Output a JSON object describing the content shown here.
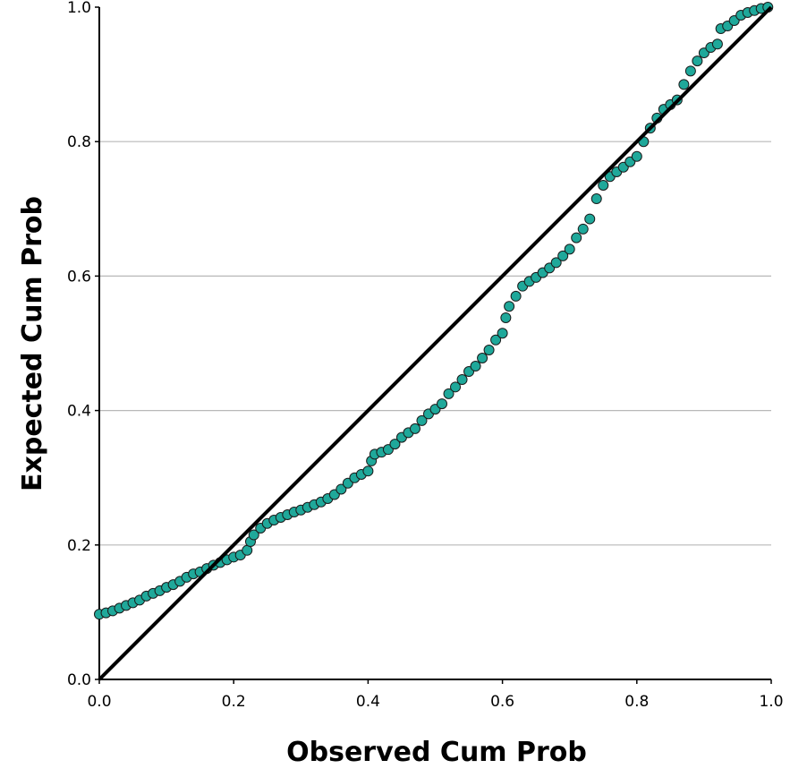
{
  "chart_data": {
    "type": "scatter",
    "title": "",
    "xlabel": "Observed Cum Prob",
    "ylabel": "Expected Cum Prob",
    "xlim": [
      0.0,
      1.0
    ],
    "ylim": [
      0.0,
      1.0
    ],
    "x_ticks": [
      "0.0",
      "0.2",
      "0.4",
      "0.6",
      "0.8",
      "1.0"
    ],
    "y_ticks": [
      "0.0",
      "0.2",
      "0.4",
      "0.6",
      "0.8",
      "1.0"
    ],
    "grid": "horizontal",
    "reference_line": {
      "from": [
        0.0,
        0.0
      ],
      "to": [
        1.0,
        1.0
      ]
    },
    "series": [
      {
        "marker_color": "#1fa89a",
        "points": [
          [
            0.0,
            0.097
          ],
          [
            0.01,
            0.099
          ],
          [
            0.02,
            0.102
          ],
          [
            0.03,
            0.106
          ],
          [
            0.04,
            0.11
          ],
          [
            0.05,
            0.114
          ],
          [
            0.06,
            0.118
          ],
          [
            0.07,
            0.124
          ],
          [
            0.08,
            0.128
          ],
          [
            0.09,
            0.132
          ],
          [
            0.1,
            0.137
          ],
          [
            0.11,
            0.141
          ],
          [
            0.12,
            0.146
          ],
          [
            0.13,
            0.152
          ],
          [
            0.14,
            0.157
          ],
          [
            0.15,
            0.16
          ],
          [
            0.16,
            0.165
          ],
          [
            0.17,
            0.17
          ],
          [
            0.18,
            0.174
          ],
          [
            0.19,
            0.178
          ],
          [
            0.2,
            0.182
          ],
          [
            0.21,
            0.185
          ],
          [
            0.22,
            0.192
          ],
          [
            0.225,
            0.205
          ],
          [
            0.23,
            0.215
          ],
          [
            0.24,
            0.225
          ],
          [
            0.25,
            0.232
          ],
          [
            0.26,
            0.237
          ],
          [
            0.27,
            0.241
          ],
          [
            0.28,
            0.245
          ],
          [
            0.29,
            0.249
          ],
          [
            0.3,
            0.252
          ],
          [
            0.31,
            0.256
          ],
          [
            0.32,
            0.26
          ],
          [
            0.33,
            0.264
          ],
          [
            0.34,
            0.269
          ],
          [
            0.35,
            0.275
          ],
          [
            0.36,
            0.283
          ],
          [
            0.37,
            0.292
          ],
          [
            0.38,
            0.3
          ],
          [
            0.39,
            0.305
          ],
          [
            0.4,
            0.31
          ],
          [
            0.405,
            0.325
          ],
          [
            0.41,
            0.335
          ],
          [
            0.42,
            0.338
          ],
          [
            0.43,
            0.342
          ],
          [
            0.44,
            0.35
          ],
          [
            0.45,
            0.36
          ],
          [
            0.46,
            0.367
          ],
          [
            0.47,
            0.373
          ],
          [
            0.48,
            0.385
          ],
          [
            0.49,
            0.395
          ],
          [
            0.5,
            0.402
          ],
          [
            0.51,
            0.41
          ],
          [
            0.52,
            0.425
          ],
          [
            0.53,
            0.435
          ],
          [
            0.54,
            0.446
          ],
          [
            0.55,
            0.458
          ],
          [
            0.56,
            0.466
          ],
          [
            0.57,
            0.478
          ],
          [
            0.58,
            0.49
          ],
          [
            0.59,
            0.505
          ],
          [
            0.6,
            0.515
          ],
          [
            0.605,
            0.538
          ],
          [
            0.61,
            0.555
          ],
          [
            0.62,
            0.57
          ],
          [
            0.63,
            0.585
          ],
          [
            0.64,
            0.592
          ],
          [
            0.65,
            0.598
          ],
          [
            0.66,
            0.605
          ],
          [
            0.67,
            0.612
          ],
          [
            0.68,
            0.62
          ],
          [
            0.69,
            0.63
          ],
          [
            0.7,
            0.64
          ],
          [
            0.71,
            0.657
          ],
          [
            0.72,
            0.67
          ],
          [
            0.73,
            0.685
          ],
          [
            0.74,
            0.715
          ],
          [
            0.75,
            0.735
          ],
          [
            0.76,
            0.748
          ],
          [
            0.77,
            0.755
          ],
          [
            0.78,
            0.762
          ],
          [
            0.79,
            0.77
          ],
          [
            0.8,
            0.778
          ],
          [
            0.81,
            0.8
          ],
          [
            0.82,
            0.82
          ],
          [
            0.83,
            0.835
          ],
          [
            0.84,
            0.848
          ],
          [
            0.85,
            0.855
          ],
          [
            0.86,
            0.862
          ],
          [
            0.87,
            0.885
          ],
          [
            0.88,
            0.905
          ],
          [
            0.89,
            0.92
          ],
          [
            0.9,
            0.932
          ],
          [
            0.91,
            0.94
          ],
          [
            0.92,
            0.945
          ],
          [
            0.925,
            0.968
          ],
          [
            0.935,
            0.972
          ],
          [
            0.945,
            0.98
          ],
          [
            0.955,
            0.988
          ],
          [
            0.965,
            0.992
          ],
          [
            0.975,
            0.995
          ],
          [
            0.985,
            0.998
          ],
          [
            0.995,
            1.0
          ]
        ]
      }
    ]
  }
}
